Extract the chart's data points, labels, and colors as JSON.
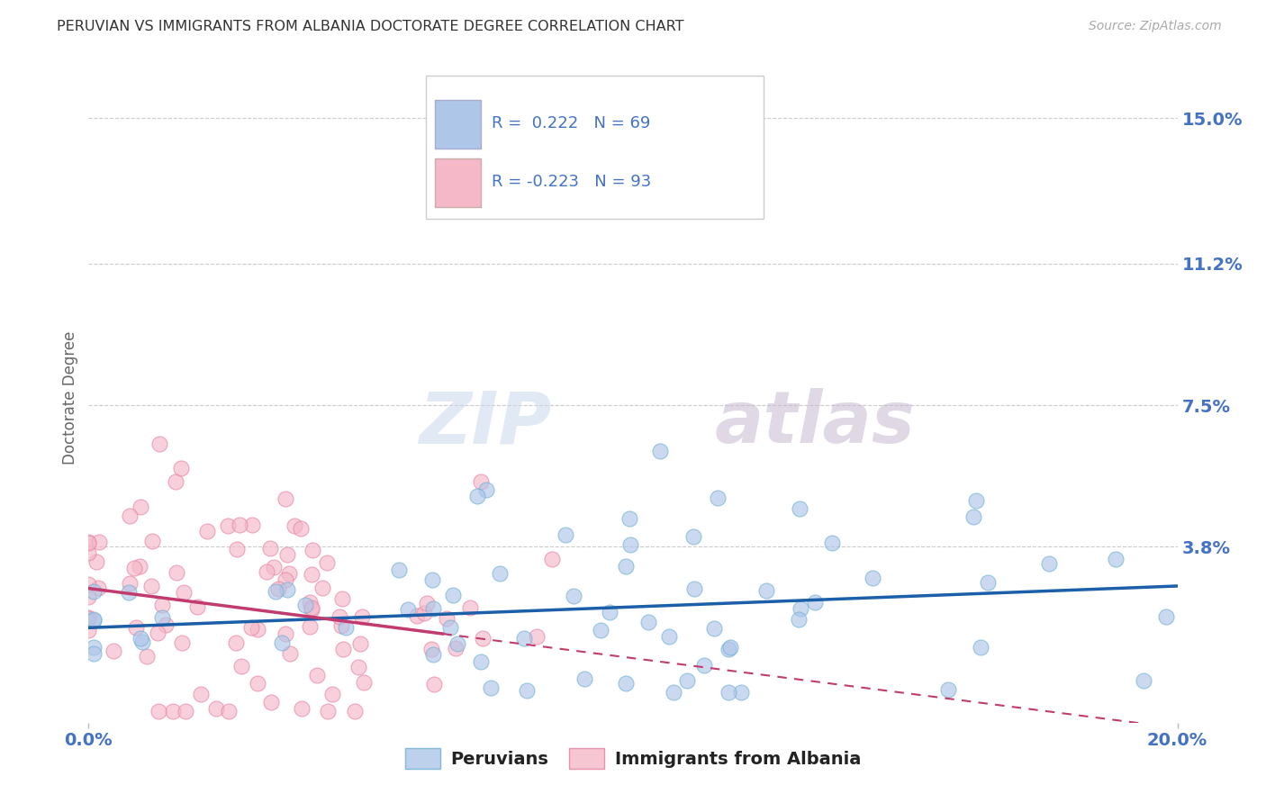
{
  "title": "PERUVIAN VS IMMIGRANTS FROM ALBANIA DOCTORATE DEGREE CORRELATION CHART",
  "source": "Source: ZipAtlas.com",
  "xlabel_ticks": [
    "0.0%",
    "20.0%"
  ],
  "ylabel_label": "Doctorate Degree",
  "ytick_labels": [
    "3.8%",
    "7.5%",
    "11.2%",
    "15.0%"
  ],
  "ytick_values": [
    0.038,
    0.075,
    0.112,
    0.15
  ],
  "xlim": [
    0.0,
    0.2
  ],
  "ylim": [
    -0.008,
    0.162
  ],
  "blue_color": "#aec6e8",
  "blue_edge_color": "#6baed6",
  "pink_color": "#f4b8c8",
  "pink_edge_color": "#e87fa0",
  "blue_line_color": "#1a5fa8",
  "pink_line_color": "#c23b6e",
  "blue_R": 0.222,
  "blue_N": 69,
  "pink_R": -0.223,
  "pink_N": 93,
  "watermark_zip": "ZIP",
  "watermark_atlas": "atlas",
  "legend_label_blue": "Peruvians",
  "legend_label_pink": "Immigrants from Albania",
  "background_color": "#ffffff",
  "grid_color": "#cccccc",
  "title_color": "#333333",
  "tick_color": "#4472c4",
  "ylabel_color": "#666666",
  "source_color": "#aaaaaa"
}
